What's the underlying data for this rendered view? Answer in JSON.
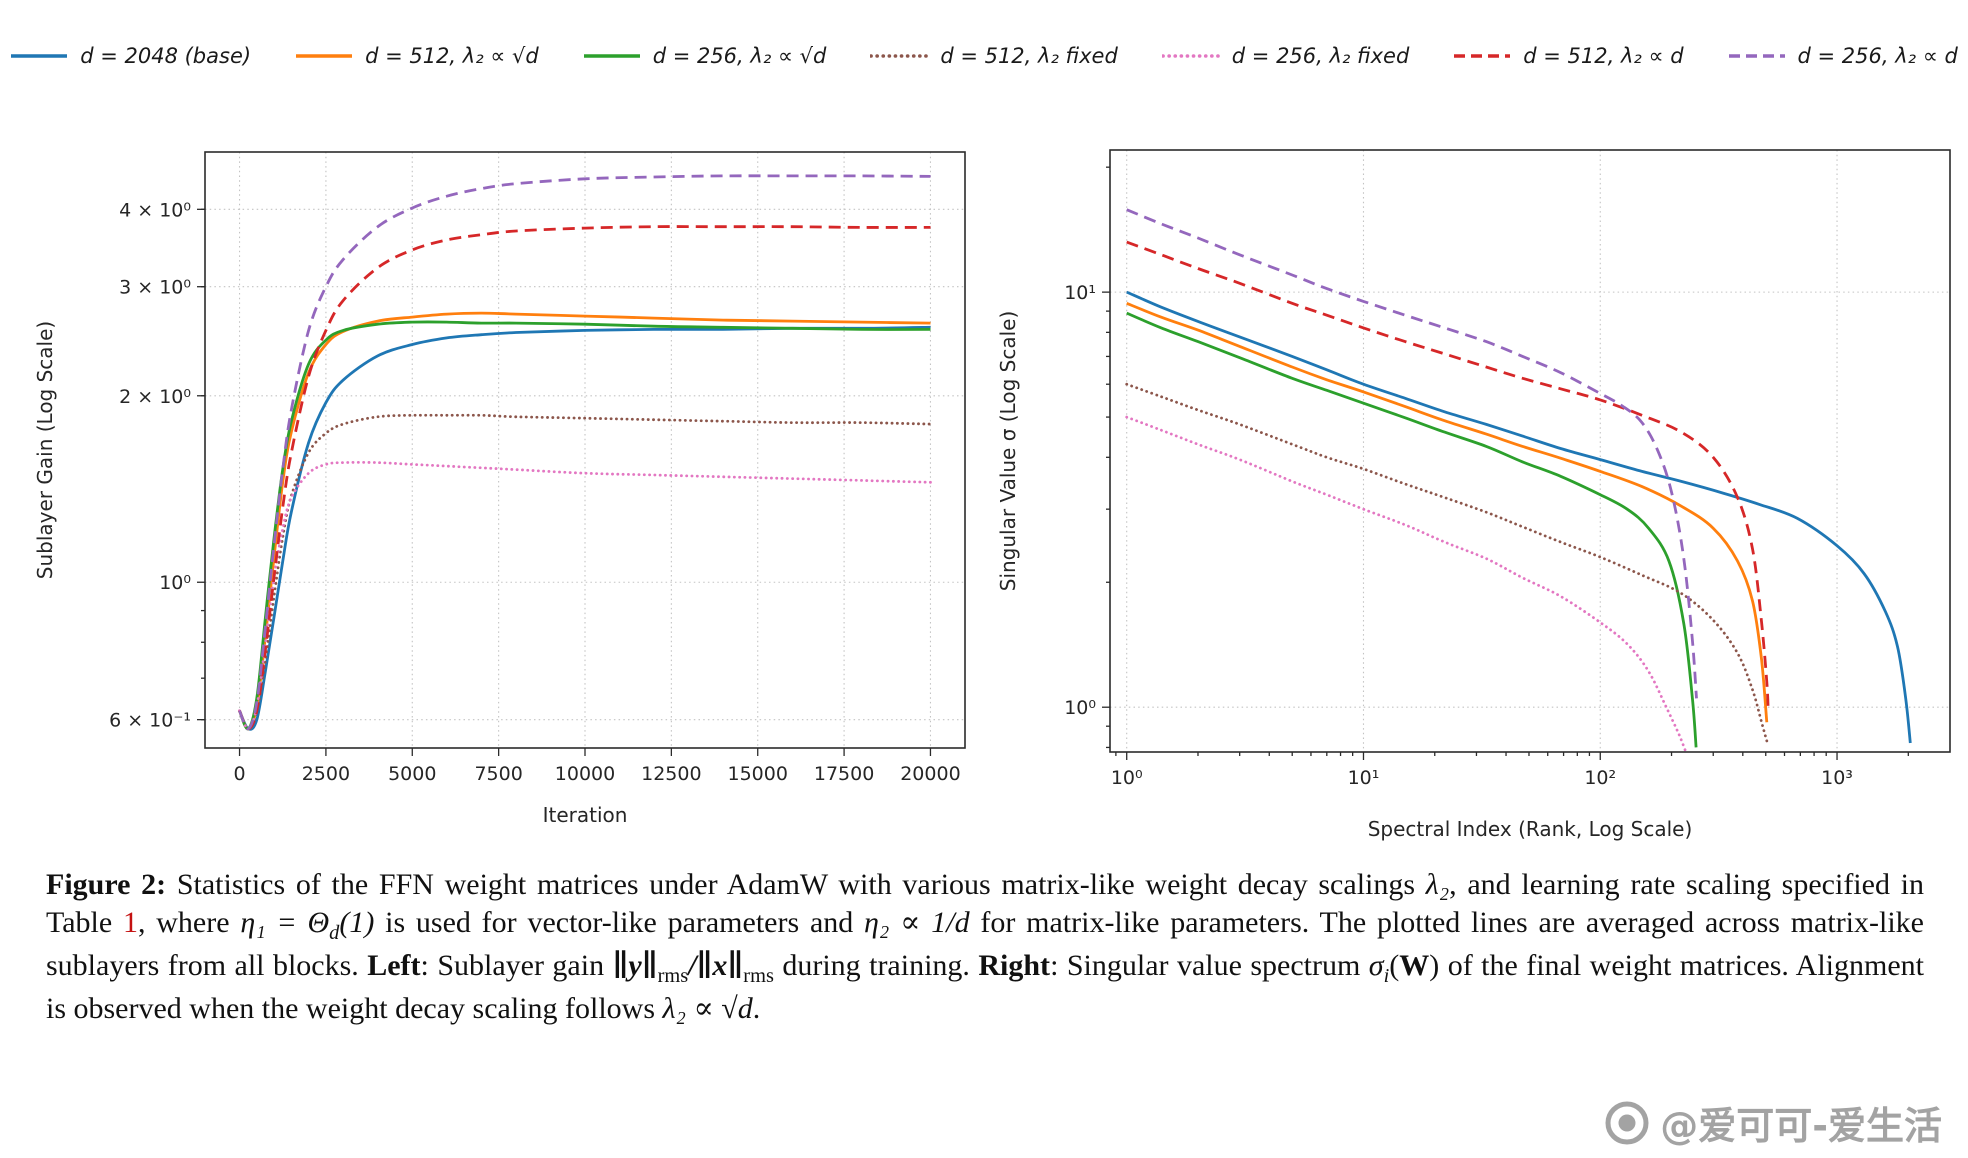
{
  "colors": {
    "background": "#ffffff",
    "text": "#111111",
    "axis": "#262626",
    "grid": "#c3c3c3",
    "link": "#c41111",
    "watermark": "#a3a3a3"
  },
  "legend": {
    "items": [
      {
        "id": "d2048-base",
        "label": "d = 2048 (base)",
        "color": "#1f77b4",
        "style": "solid"
      },
      {
        "id": "d512-sqrtd",
        "label": "d = 512, λ₂ ∝ √d",
        "color": "#ff7f0e",
        "style": "solid"
      },
      {
        "id": "d256-sqrtd",
        "label": "d = 256, λ₂ ∝ √d",
        "color": "#2ca02c",
        "style": "solid"
      },
      {
        "id": "d512-fixed",
        "label": "d = 512, λ₂ fixed",
        "color": "#8c564b",
        "style": "dotted"
      },
      {
        "id": "d256-fixed",
        "label": "d = 256, λ₂ fixed",
        "color": "#e377c2",
        "style": "dotted"
      },
      {
        "id": "d512-d",
        "label": "d = 512, λ₂ ∝ d",
        "color": "#d62728",
        "style": "dashed"
      },
      {
        "id": "d256-d",
        "label": "d = 256, λ₂ ∝ d",
        "color": "#9467bd",
        "style": "dashed"
      }
    ]
  },
  "chart_data": [
    {
      "type": "line",
      "title": "",
      "xlabel": "Iteration",
      "ylabel": "Sublayer Gain (Log Scale)",
      "xscale": "linear",
      "yscale": "log",
      "grid": true,
      "xlim": [
        -1000,
        21000
      ],
      "ylim": [
        0.54,
        4.95
      ],
      "xticks": [
        {
          "v": 0,
          "label": "0"
        },
        {
          "v": 2500,
          "label": "2500"
        },
        {
          "v": 5000,
          "label": "5000"
        },
        {
          "v": 7500,
          "label": "7500"
        },
        {
          "v": 10000,
          "label": "10000"
        },
        {
          "v": 12500,
          "label": "12500"
        },
        {
          "v": 15000,
          "label": "15000"
        },
        {
          "v": 17500,
          "label": "17500"
        },
        {
          "v": 20000,
          "label": "20000"
        }
      ],
      "yticks": [
        {
          "v": 0.6,
          "label": "6 × 10⁻¹"
        },
        {
          "v": 1,
          "label": "10⁰"
        },
        {
          "v": 2,
          "label": "2 × 10⁰"
        },
        {
          "v": 3,
          "label": "3 × 10⁰"
        },
        {
          "v": 4,
          "label": "4 × 10⁰"
        }
      ],
      "x": [
        0,
        250,
        500,
        750,
        1000,
        1250,
        1500,
        2000,
        2500,
        3000,
        4000,
        5000,
        6000,
        7000,
        8000,
        10000,
        12000,
        14000,
        16000,
        18000,
        20000
      ],
      "series": [
        {
          "id": "d2048-base",
          "y": [
            0.62,
            0.58,
            0.6,
            0.72,
            0.88,
            1.08,
            1.3,
            1.68,
            1.95,
            2.12,
            2.32,
            2.42,
            2.48,
            2.51,
            2.53,
            2.55,
            2.56,
            2.56,
            2.57,
            2.57,
            2.58
          ]
        },
        {
          "id": "d512-sqrtd",
          "y": [
            0.62,
            0.58,
            0.63,
            0.82,
            1.1,
            1.45,
            1.75,
            2.18,
            2.42,
            2.54,
            2.64,
            2.68,
            2.71,
            2.72,
            2.71,
            2.69,
            2.67,
            2.65,
            2.64,
            2.63,
            2.62
          ]
        },
        {
          "id": "d256-sqrtd",
          "y": [
            0.62,
            0.58,
            0.65,
            0.88,
            1.18,
            1.52,
            1.82,
            2.25,
            2.46,
            2.55,
            2.61,
            2.63,
            2.63,
            2.62,
            2.62,
            2.61,
            2.59,
            2.58,
            2.57,
            2.56,
            2.56
          ]
        },
        {
          "id": "d512-fixed",
          "y": [
            0.62,
            0.58,
            0.62,
            0.75,
            0.95,
            1.18,
            1.38,
            1.62,
            1.74,
            1.8,
            1.85,
            1.86,
            1.86,
            1.86,
            1.85,
            1.84,
            1.83,
            1.82,
            1.81,
            1.81,
            1.8
          ]
        },
        {
          "id": "d256-fixed",
          "y": [
            0.62,
            0.58,
            0.63,
            0.8,
            1.02,
            1.22,
            1.37,
            1.5,
            1.55,
            1.56,
            1.56,
            1.55,
            1.54,
            1.53,
            1.52,
            1.5,
            1.49,
            1.48,
            1.47,
            1.46,
            1.45
          ]
        },
        {
          "id": "d512-d",
          "y": [
            0.62,
            0.58,
            0.62,
            0.78,
            1.02,
            1.32,
            1.62,
            2.15,
            2.55,
            2.85,
            3.22,
            3.44,
            3.57,
            3.64,
            3.69,
            3.73,
            3.75,
            3.75,
            3.75,
            3.74,
            3.74
          ]
        },
        {
          "id": "d256-d",
          "y": [
            0.62,
            0.58,
            0.64,
            0.85,
            1.15,
            1.52,
            1.9,
            2.55,
            3.0,
            3.32,
            3.75,
            4.02,
            4.2,
            4.32,
            4.4,
            4.48,
            4.51,
            4.53,
            4.53,
            4.53,
            4.52
          ]
        }
      ]
    },
    {
      "type": "line",
      "title": "",
      "xlabel": "Spectral Index (Rank, Log Scale)",
      "ylabel": "Singular Value σ (Log Scale)",
      "xscale": "log",
      "yscale": "log",
      "grid": true,
      "xlim": [
        0.85,
        3000
      ],
      "ylim": [
        0.78,
        22
      ],
      "xticks": [
        {
          "v": 1,
          "label": "10⁰"
        },
        {
          "v": 10,
          "label": "10¹"
        },
        {
          "v": 100,
          "label": "10²"
        },
        {
          "v": 1000,
          "label": "10³"
        }
      ],
      "yticks": [
        {
          "v": 1,
          "label": "10⁰"
        },
        {
          "v": 10,
          "label": "10¹"
        }
      ],
      "series": [
        {
          "id": "d2048-base",
          "x": [
            1,
            1.4,
            2,
            3,
            5,
            7,
            10,
            15,
            22,
            33,
            47,
            68,
            100,
            150,
            220,
            330,
            470,
            680,
            1000,
            1300,
            1600,
            1800,
            1950,
            2040
          ],
          "y": [
            10,
            9.2,
            8.5,
            7.8,
            7.0,
            6.5,
            6.0,
            5.55,
            5.15,
            4.8,
            4.5,
            4.2,
            3.95,
            3.7,
            3.5,
            3.28,
            3.08,
            2.85,
            2.45,
            2.1,
            1.7,
            1.4,
            1.05,
            0.82
          ]
        },
        {
          "id": "d512-sqrtd",
          "x": [
            1,
            1.4,
            2,
            3,
            5,
            7,
            10,
            15,
            22,
            33,
            47,
            68,
            100,
            150,
            220,
            300,
            380,
            440,
            480,
            505
          ],
          "y": [
            9.4,
            8.7,
            8.1,
            7.4,
            6.6,
            6.15,
            5.75,
            5.3,
            4.9,
            4.55,
            4.25,
            3.98,
            3.7,
            3.4,
            3.05,
            2.7,
            2.25,
            1.8,
            1.3,
            0.92
          ]
        },
        {
          "id": "d256-sqrtd",
          "x": [
            1,
            1.4,
            2,
            3,
            5,
            7,
            10,
            15,
            22,
            33,
            47,
            68,
            100,
            130,
            160,
            195,
            225,
            245,
            254
          ],
          "y": [
            8.9,
            8.2,
            7.6,
            6.95,
            6.2,
            5.8,
            5.4,
            4.98,
            4.6,
            4.25,
            3.9,
            3.6,
            3.25,
            3.0,
            2.7,
            2.25,
            1.6,
            1.05,
            0.8
          ]
        },
        {
          "id": "d512-fixed",
          "x": [
            1,
            1.4,
            2,
            3,
            5,
            7,
            10,
            15,
            22,
            33,
            47,
            68,
            100,
            150,
            220,
            300,
            380,
            440,
            480,
            508
          ],
          "y": [
            6.0,
            5.6,
            5.2,
            4.8,
            4.3,
            4.0,
            3.75,
            3.45,
            3.2,
            2.95,
            2.72,
            2.5,
            2.3,
            2.08,
            1.88,
            1.62,
            1.35,
            1.1,
            0.92,
            0.82
          ]
        },
        {
          "id": "d256-fixed",
          "x": [
            1,
            1.4,
            2,
            3,
            5,
            7,
            10,
            15,
            22,
            33,
            47,
            68,
            100,
            130,
            160,
            190,
            215,
            230
          ],
          "y": [
            5.0,
            4.65,
            4.3,
            3.95,
            3.5,
            3.25,
            3.0,
            2.75,
            2.5,
            2.28,
            2.05,
            1.85,
            1.6,
            1.42,
            1.22,
            1.0,
            0.86,
            0.78
          ]
        },
        {
          "id": "d512-d",
          "x": [
            1,
            1.4,
            2,
            3,
            5,
            7,
            10,
            15,
            22,
            33,
            47,
            68,
            100,
            150,
            220,
            300,
            380,
            440,
            480,
            505,
            512
          ],
          "y": [
            13.2,
            12.3,
            11.4,
            10.5,
            9.4,
            8.8,
            8.2,
            7.6,
            7.1,
            6.6,
            6.2,
            5.85,
            5.5,
            5.05,
            4.6,
            4.0,
            3.2,
            2.4,
            1.6,
            1.15,
            0.98
          ]
        },
        {
          "id": "d256-d",
          "x": [
            1,
            1.4,
            2,
            3,
            5,
            7,
            10,
            15,
            22,
            33,
            47,
            68,
            100,
            125,
            150,
            175,
            200,
            225,
            245,
            255
          ],
          "y": [
            15.8,
            14.6,
            13.5,
            12.3,
            11.0,
            10.2,
            9.5,
            8.8,
            8.2,
            7.6,
            7.0,
            6.4,
            5.7,
            5.3,
            4.85,
            4.15,
            3.3,
            2.3,
            1.45,
            1.05
          ]
        }
      ]
    }
  ],
  "caption": {
    "runs": [
      {
        "t": "Figure 2:",
        "b": true
      },
      {
        "t": "  Statistics of the FFN weight matrices under AdamW with various matrix-like weight decay scalings "
      },
      {
        "t": "λ₂",
        "i": true
      },
      {
        "t": ", and learning rate scaling specified in Table "
      },
      {
        "t": "1",
        "link": true
      },
      {
        "t": ", where "
      },
      {
        "t": "η₁ = Θ",
        "i": true
      },
      {
        "t": "d",
        "i": true,
        "sub": true
      },
      {
        "t": "(1)",
        "i": true
      },
      {
        "t": " is used for vector-like parameters and "
      },
      {
        "t": "η₂ ∝ 1/d",
        "i": true
      },
      {
        "t": " for matrix-like parameters.  The plotted lines are averaged across matrix-like sublayers from all blocks.  "
      },
      {
        "t": "Left",
        "b": true
      },
      {
        "t": ": Sublayer gain "
      },
      {
        "t": "∥y∥",
        "i": true,
        "b": true
      },
      {
        "t": "rms",
        "sub": true
      },
      {
        "t": "/∥x∥",
        "i": true,
        "b": true
      },
      {
        "t": "rms",
        "sub": true
      },
      {
        "t": " during training.  "
      },
      {
        "t": "Right",
        "b": true
      },
      {
        "t": ": Singular value spectrum "
      },
      {
        "t": "σ",
        "i": true
      },
      {
        "t": "i",
        "i": true,
        "sub": true
      },
      {
        "t": "("
      },
      {
        "t": "W",
        "b": true
      },
      {
        "t": ")"
      },
      {
        "t": " of the final weight matrices.  Alignment is observed when the weight decay scaling follows "
      },
      {
        "t": "λ₂ ∝ √d",
        "i": true
      },
      {
        "t": "."
      }
    ]
  },
  "watermark": {
    "text": "@爱可可-爱生活"
  }
}
